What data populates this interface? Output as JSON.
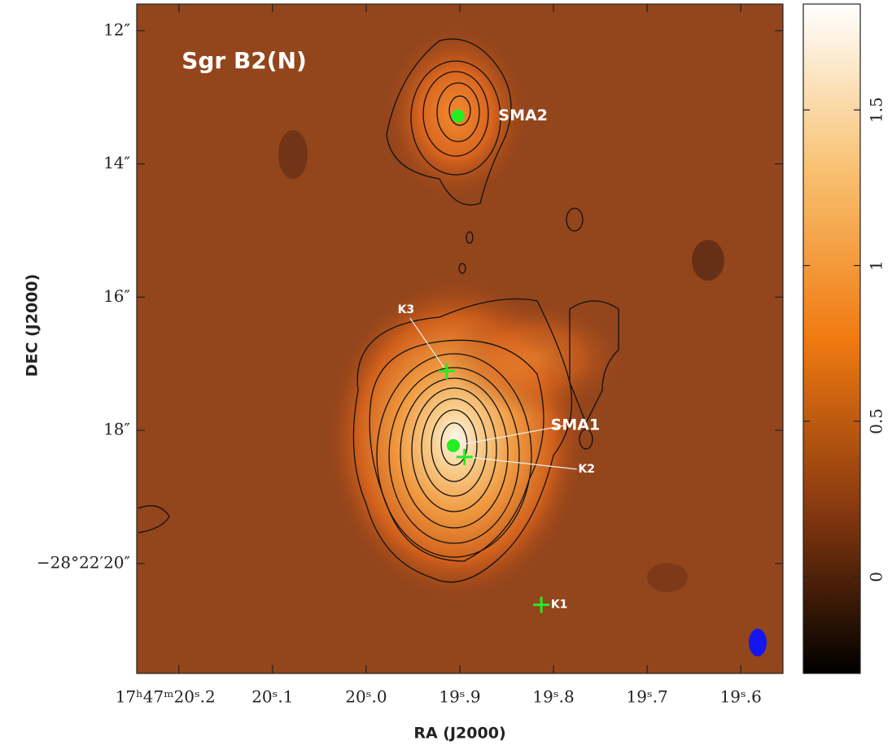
{
  "chart_data": {
    "type": "image",
    "title": "Sgr B2(N)",
    "xlabel": "RA  (J2000)",
    "ylabel": "DEC  (J2000)",
    "xlim": [
      20.245,
      19.555
    ],
    "xticks": [
      {
        "value": 20.2,
        "label": "17ʰ47ᵐ20ˢ.2"
      },
      {
        "value": 20.1,
        "label": "20ˢ.1"
      },
      {
        "value": 20.0,
        "label": "20ˢ.0"
      },
      {
        "value": 19.9,
        "label": "19ˢ.9"
      },
      {
        "value": 19.8,
        "label": "19ˢ.8"
      },
      {
        "value": 19.7,
        "label": "19ˢ.7"
      },
      {
        "value": 19.6,
        "label": "19ˢ.6"
      }
    ],
    "ylim": [
      21.65,
      11.6
    ],
    "yticks": [
      {
        "value": 12,
        "label": "12″"
      },
      {
        "value": 14,
        "label": "14″"
      },
      {
        "value": 16,
        "label": "16″"
      },
      {
        "value": 18,
        "label": "18″"
      },
      {
        "value": 20,
        "label": "−28°22′20″"
      }
    ],
    "colorbar": {
      "lim": [
        -0.31,
        1.84
      ],
      "ticks": [
        0,
        0.5,
        1,
        1.5
      ],
      "colors": [
        "#000000",
        "#8a3a10",
        "#f07a10",
        "#f8c070",
        "#ffffff"
      ]
    },
    "sources": [
      {
        "name": "SMA2",
        "x": 19.902,
        "y": 13.28,
        "marker": "dot"
      },
      {
        "name": "SMA1",
        "x": 19.907,
        "y": 18.23,
        "marker": "dot"
      },
      {
        "name": "K2",
        "x": 19.895,
        "y": 18.4,
        "marker": "cross"
      },
      {
        "name": "K3",
        "x": 19.914,
        "y": 17.11,
        "marker": "cross"
      },
      {
        "name": "K1",
        "x": 19.813,
        "y": 20.62,
        "marker": "cross"
      }
    ],
    "marker_color": "#22ee22"
  }
}
